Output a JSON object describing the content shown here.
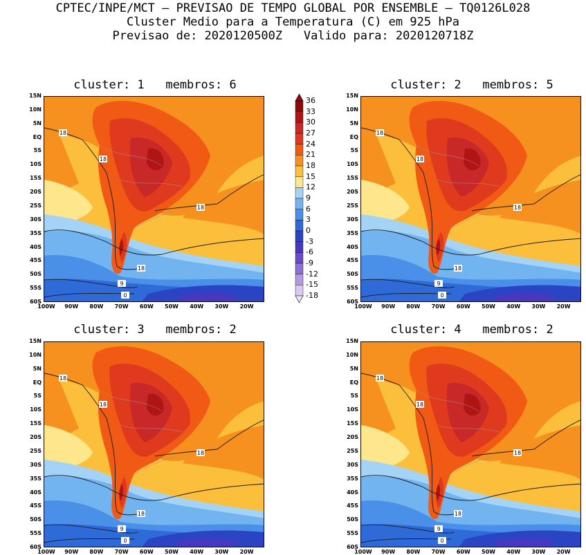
{
  "header": {
    "line1": "CPTEC/INPE/MCT – PREVISAO DE TEMPO GLOBAL POR ENSEMBLE – TQ0126L028",
    "line2": "Cluster Medio para a Temperatura (C) em 925 hPa",
    "line3": "Previsao de: 2020120500Z   Valido para: 2020120718Z"
  },
  "panels": [
    {
      "title": "cluster: 1   membros: 6"
    },
    {
      "title": "cluster: 2   membros: 5"
    },
    {
      "title": "cluster: 3   membros: 2"
    },
    {
      "title": "cluster: 4   membros: 2"
    }
  ],
  "lat_ticks": [
    "15N",
    "10N",
    "5N",
    "EQ",
    "5S",
    "10S",
    "15S",
    "20S",
    "25S",
    "30S",
    "35S",
    "40S",
    "45S",
    "50S",
    "55S",
    "60S"
  ],
  "lon_ticks": [
    "100W",
    "90W",
    "80W",
    "70W",
    "60W",
    "50W",
    "40W",
    "30W",
    "20W"
  ],
  "contour_labels": {
    "warm": "18",
    "mid": "9",
    "cold": "0"
  },
  "colorbar": {
    "labels": [
      "36",
      "33",
      "30",
      "27",
      "24",
      "21",
      "18",
      "15",
      "12",
      "9",
      "6",
      "3",
      "0",
      "-3",
      "-6",
      "-9",
      "-12",
      "-15",
      "-18"
    ],
    "colors": [
      "#8c0a0a",
      "#b01414",
      "#c82828",
      "#e03a1e",
      "#f05a14",
      "#f6901e",
      "#fbbf3c",
      "#fde68c",
      "#a4d3f5",
      "#72b4ef",
      "#4a90e8",
      "#2e6ad8",
      "#2a44c4",
      "#4838c0",
      "#6a4cc8",
      "#8e70d6",
      "#b29ae4",
      "#d8c8f2"
    ]
  }
}
